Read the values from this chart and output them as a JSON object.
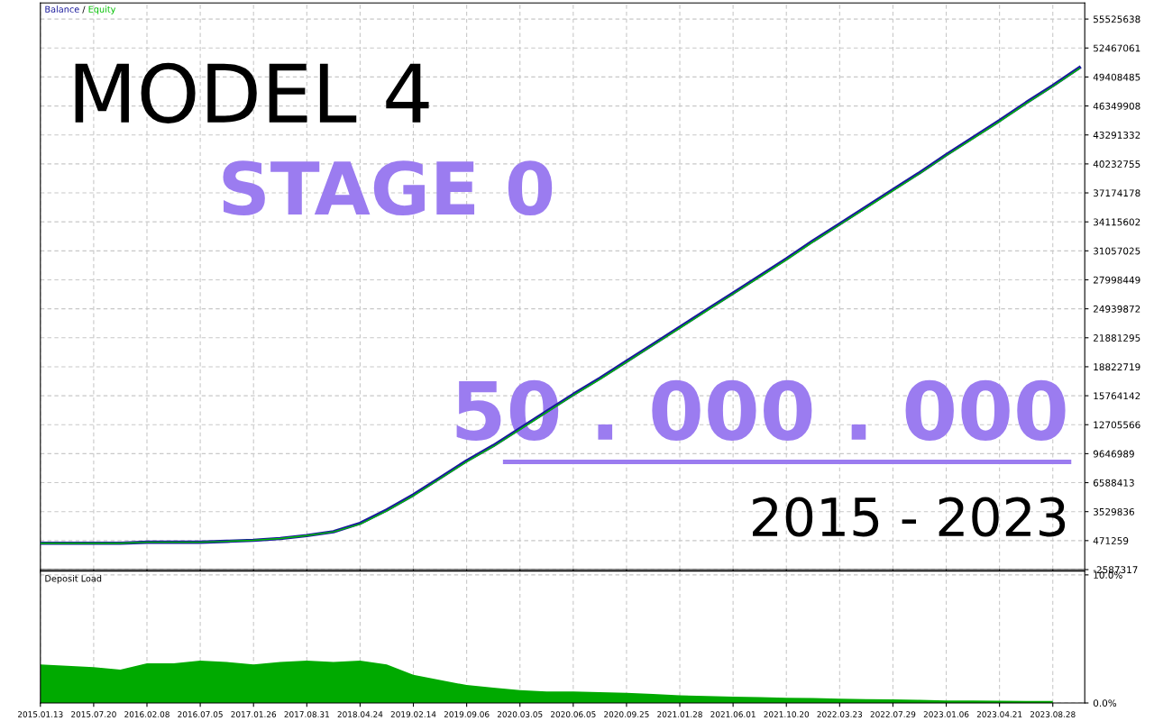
{
  "chart_data": [
    {
      "type": "line",
      "legend": "top left",
      "grid": true,
      "tick_labels": "y",
      "categories": [
        null,
        null,
        null,
        null,
        null,
        null,
        null,
        null,
        null,
        null,
        null,
        null,
        null,
        null,
        null,
        null,
        null,
        null,
        null,
        null,
        null,
        null,
        null,
        null,
        null,
        null,
        null,
        null,
        null,
        null,
        null,
        null,
        null,
        null,
        null,
        null,
        null,
        null,
        null,
        null
      ],
      "ylim": [
        -2587317,
        57230000
      ],
      "yticks": [
        -2587317,
        471259,
        3529836,
        6588413,
        9646989,
        12705566,
        15764142,
        18822719,
        21881295,
        24939872,
        27998449,
        31057025,
        34115602,
        37174178,
        40232755,
        43291332,
        46349908,
        49408485,
        52467061,
        55525638
      ],
      "series": [
        {
          "name": "Balance",
          "color": "#1a1a9c",
          "values": [
            200000,
            200000,
            200000,
            200000,
            300000,
            300000,
            300000,
            400000,
            500000,
            700000,
            1000000,
            1400000,
            2300000,
            3700000,
            5300000,
            7100000,
            8900000,
            10500000,
            12300000,
            14100000,
            15900000,
            17600000,
            19400000,
            21200000,
            23000000,
            24800000,
            26600000,
            28400000,
            30200000,
            32100000,
            33900000,
            35700000,
            37500000,
            39300000,
            41200000,
            43000000,
            44800000,
            46700000,
            48500000,
            50400000
          ]
        },
        {
          "name": "Equity",
          "color": "#00c000",
          "values": [
            200000,
            200000,
            200000,
            200000,
            300000,
            300000,
            300000,
            400000,
            500000,
            700000,
            1000000,
            1400000,
            2200000,
            3600000,
            5200000,
            7000000,
            8800000,
            10400000,
            12200000,
            14000000,
            15800000,
            17500000,
            19300000,
            21100000,
            22900000,
            24700000,
            26500000,
            28300000,
            30100000,
            32000000,
            33800000,
            35600000,
            37400000,
            39200000,
            41100000,
            42900000,
            44700000,
            46600000,
            48400000,
            50300000
          ]
        }
      ],
      "annotations": [
        "MODEL 4",
        "STAGE 0",
        "50 . 000 . 000",
        "2015 - 2023",
        "/"
      ]
    },
    {
      "type": "area",
      "title": "Deposit Load",
      "grid": true,
      "categories": [
        "2015.01.13",
        null,
        "2015.07.20",
        null,
        "2016.02.08",
        null,
        "2016.07.05",
        null,
        "2017.01.26",
        null,
        "2017.08.31",
        null,
        "2018.04.24",
        null,
        "2019.02.14",
        null,
        "2019.09.06",
        null,
        "2020.03.05",
        null,
        "2020.06.05",
        null,
        "2020.09.25",
        null,
        "2021.01.28",
        null,
        "2021.06.01",
        null,
        "2021.10.20",
        null,
        "2022.03.23",
        null,
        "2022.07.29",
        null,
        "2023.01.06",
        null,
        "2023.04.21",
        null,
        "2023.08.28",
        null
      ],
      "ylim": [
        0,
        10.3
      ],
      "yticks": [
        {
          "value": 0,
          "label": "0.0%"
        },
        {
          "value": 10,
          "label": "10.0%"
        }
      ],
      "series": [
        {
          "color": "#00aa00",
          "values": [
            3.0,
            2.9,
            2.8,
            2.6,
            3.1,
            3.1,
            3.3,
            3.2,
            3.0,
            3.2,
            3.3,
            3.2,
            3.3,
            3.0,
            2.2,
            1.8,
            1.4,
            1.2,
            1.0,
            0.9,
            0.9,
            0.85,
            0.8,
            0.7,
            0.6,
            0.55,
            0.5,
            0.45,
            0.4,
            0.38,
            0.33,
            0.3,
            0.28,
            0.25,
            0.2,
            0.2,
            0.17,
            0.15,
            0.15,
            null
          ]
        }
      ]
    }
  ]
}
